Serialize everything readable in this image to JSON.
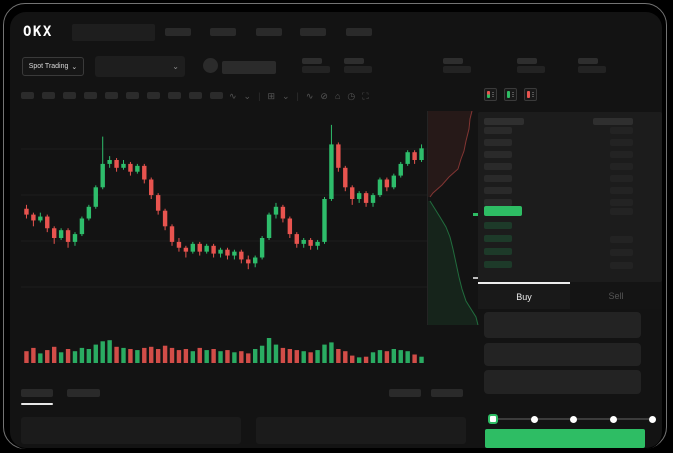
{
  "window": {
    "brand_logo": "OKX"
  },
  "colors": {
    "accent_green": "#2ebd64",
    "accent_red": "#e8544f",
    "candle_green": "#2ebd6b",
    "candle_red": "#e8544f",
    "bid_bar_green": "#1d3a29",
    "panel_bg": "#1c1c1c"
  },
  "subheader": {
    "market_selector": {
      "label": "Spot Trading",
      "chevron": "⌄"
    },
    "pair_selector": {
      "chevron": "⌄"
    }
  },
  "toolbar": {
    "icons": [
      {
        "name": "chart-type-icon",
        "glyph": "∿"
      },
      {
        "name": "chevron-down-icon",
        "glyph": "⌄"
      },
      {
        "name": "divider",
        "glyph": "|"
      },
      {
        "name": "grid-layout-icon",
        "glyph": "⊞"
      },
      {
        "name": "chevron-down-icon",
        "glyph": "⌄"
      },
      {
        "name": "divider",
        "glyph": "|"
      },
      {
        "name": "indicators-icon",
        "glyph": "∿"
      },
      {
        "name": "compare-icon",
        "glyph": "⊘"
      },
      {
        "name": "snapshot-icon",
        "glyph": "⌂"
      },
      {
        "name": "history-icon",
        "glyph": "◷"
      },
      {
        "name": "fullscreen-icon",
        "glyph": "⛶"
      }
    ]
  },
  "order_book": {
    "view_icons": [
      "book-combined-icon",
      "book-bids-icon",
      "book-asks-icon"
    ],
    "ask_rows": 7,
    "bid_rows": 4,
    "last_price_highlight_color": "#2ebd64"
  },
  "trade_panel": {
    "tabs": [
      {
        "label": "Buy",
        "active": true
      },
      {
        "label": "Sell",
        "active": false
      }
    ],
    "input_count": 3,
    "slider_stops": 5,
    "submit_color": "#2ebd64"
  },
  "chart_data": {
    "type": "candlestick",
    "title": "",
    "note": "skeleton chart, no axis labels visible; prices normalized 0-100",
    "ylim": [
      0,
      100
    ],
    "grid": true,
    "candles_ohlc": [
      [
        55,
        57,
        50,
        52
      ],
      [
        52,
        53,
        46,
        49
      ],
      [
        49,
        53,
        48,
        51
      ],
      [
        51,
        52,
        43,
        45
      ],
      [
        45,
        46,
        37,
        40
      ],
      [
        40,
        45,
        39,
        44
      ],
      [
        44,
        45,
        35,
        38
      ],
      [
        38,
        43,
        36,
        42
      ],
      [
        42,
        51,
        41,
        50
      ],
      [
        50,
        57,
        49,
        56
      ],
      [
        56,
        67,
        55,
        66
      ],
      [
        66,
        92,
        65,
        78
      ],
      [
        78,
        82,
        76,
        80
      ],
      [
        80,
        81,
        74,
        76
      ],
      [
        76,
        80,
        75,
        78
      ],
      [
        78,
        79,
        72,
        74
      ],
      [
        74,
        78,
        73,
        77
      ],
      [
        77,
        78,
        68,
        70
      ],
      [
        70,
        71,
        60,
        62
      ],
      [
        62,
        63,
        52,
        54
      ],
      [
        54,
        55,
        44,
        46
      ],
      [
        46,
        47,
        36,
        38
      ],
      [
        38,
        40,
        33,
        35
      ],
      [
        35,
        36,
        30,
        33
      ],
      [
        33,
        38,
        32,
        37
      ],
      [
        37,
        38,
        31,
        33
      ],
      [
        33,
        37,
        32,
        36
      ],
      [
        36,
        37,
        30,
        32
      ],
      [
        32,
        35,
        30,
        34
      ],
      [
        34,
        35,
        29,
        31
      ],
      [
        31,
        34,
        29,
        33
      ],
      [
        33,
        34,
        27,
        29
      ],
      [
        29,
        31,
        24,
        27
      ],
      [
        27,
        31,
        25,
        30
      ],
      [
        30,
        41,
        29,
        40
      ],
      [
        40,
        53,
        39,
        52
      ],
      [
        52,
        58,
        50,
        56
      ],
      [
        56,
        57,
        48,
        50
      ],
      [
        50,
        51,
        40,
        42
      ],
      [
        42,
        43,
        35,
        37
      ],
      [
        37,
        40,
        35,
        39
      ],
      [
        39,
        40,
        34,
        36
      ],
      [
        36,
        39,
        34,
        38
      ],
      [
        38,
        61,
        37,
        60
      ],
      [
        60,
        98,
        59,
        88
      ],
      [
        88,
        89,
        74,
        76
      ],
      [
        76,
        77,
        64,
        66
      ],
      [
        66,
        67,
        57,
        60
      ],
      [
        60,
        64,
        58,
        63
      ],
      [
        63,
        64,
        56,
        58
      ],
      [
        58,
        63,
        56,
        62
      ],
      [
        62,
        71,
        61,
        70
      ],
      [
        70,
        71,
        64,
        66
      ],
      [
        66,
        73,
        65,
        72
      ],
      [
        72,
        79,
        71,
        78
      ],
      [
        78,
        85,
        77,
        84
      ],
      [
        84,
        85,
        78,
        80
      ],
      [
        80,
        88,
        79,
        86
      ]
    ],
    "volume": [
      40,
      55,
      30,
      45,
      60,
      35,
      50,
      40,
      55,
      50,
      70,
      85,
      90,
      60,
      55,
      50,
      45,
      55,
      60,
      50,
      65,
      55,
      45,
      50,
      40,
      55,
      45,
      50,
      40,
      45,
      35,
      40,
      30,
      50,
      65,
      100,
      70,
      55,
      50,
      45,
      40,
      35,
      45,
      70,
      80,
      50,
      40,
      20,
      12,
      15,
      35,
      45,
      40,
      50,
      45,
      40,
      25,
      15
    ],
    "depth_profile": {
      "orientation": "vertical-right-of-chart",
      "asks_curve": [
        [
          44,
          0
        ],
        [
          42,
          8
        ],
        [
          41,
          18
        ],
        [
          38,
          30
        ],
        [
          36,
          40
        ],
        [
          33,
          48
        ],
        [
          30,
          58
        ],
        [
          21,
          66
        ],
        [
          14,
          74
        ],
        [
          5,
          82
        ],
        [
          2,
          86
        ]
      ],
      "bids_curve": [
        [
          2,
          90
        ],
        [
          7,
          98
        ],
        [
          12,
          106
        ],
        [
          18,
          116
        ],
        [
          22,
          126
        ],
        [
          25,
          138
        ],
        [
          28,
          152
        ],
        [
          31,
          166
        ],
        [
          34,
          178
        ],
        [
          38,
          190
        ],
        [
          43,
          198
        ],
        [
          48,
          206
        ],
        [
          50,
          214
        ]
      ],
      "last_price_tick_y": 102,
      "mid_tick_y": 166
    }
  }
}
